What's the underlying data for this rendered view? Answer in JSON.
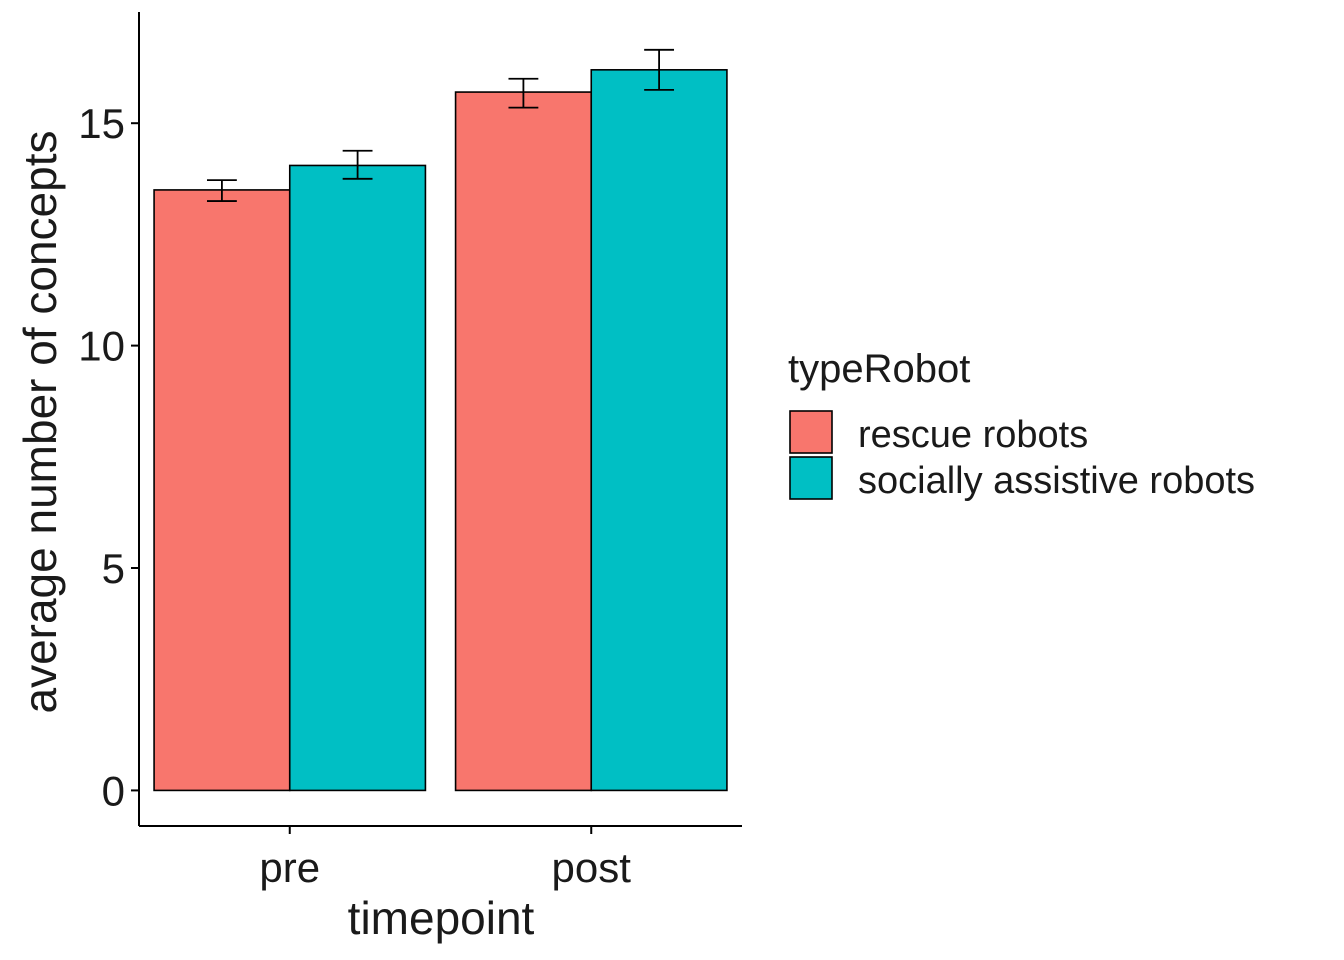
{
  "chart_data": {
    "type": "bar",
    "title": "",
    "xlabel": "timepoint",
    "ylabel": "average number of concepts",
    "categories": [
      "pre",
      "post"
    ],
    "series": [
      {
        "name": "rescue robots",
        "color": "#F8766D",
        "values": [
          13.5,
          15.7
        ],
        "error_low": [
          13.25,
          15.35
        ],
        "error_high": [
          13.72,
          16.0
        ]
      },
      {
        "name": "socially assistive robots",
        "color": "#00BFC4",
        "values": [
          14.05,
          16.2
        ],
        "error_low": [
          13.75,
          15.75
        ],
        "error_high": [
          14.38,
          16.65
        ]
      }
    ],
    "ylim": [
      -0.8,
      17.5
    ],
    "yticks": [
      0,
      5,
      10,
      15
    ],
    "grid": false,
    "legend": {
      "title": "typeRobot",
      "position": "right"
    }
  }
}
